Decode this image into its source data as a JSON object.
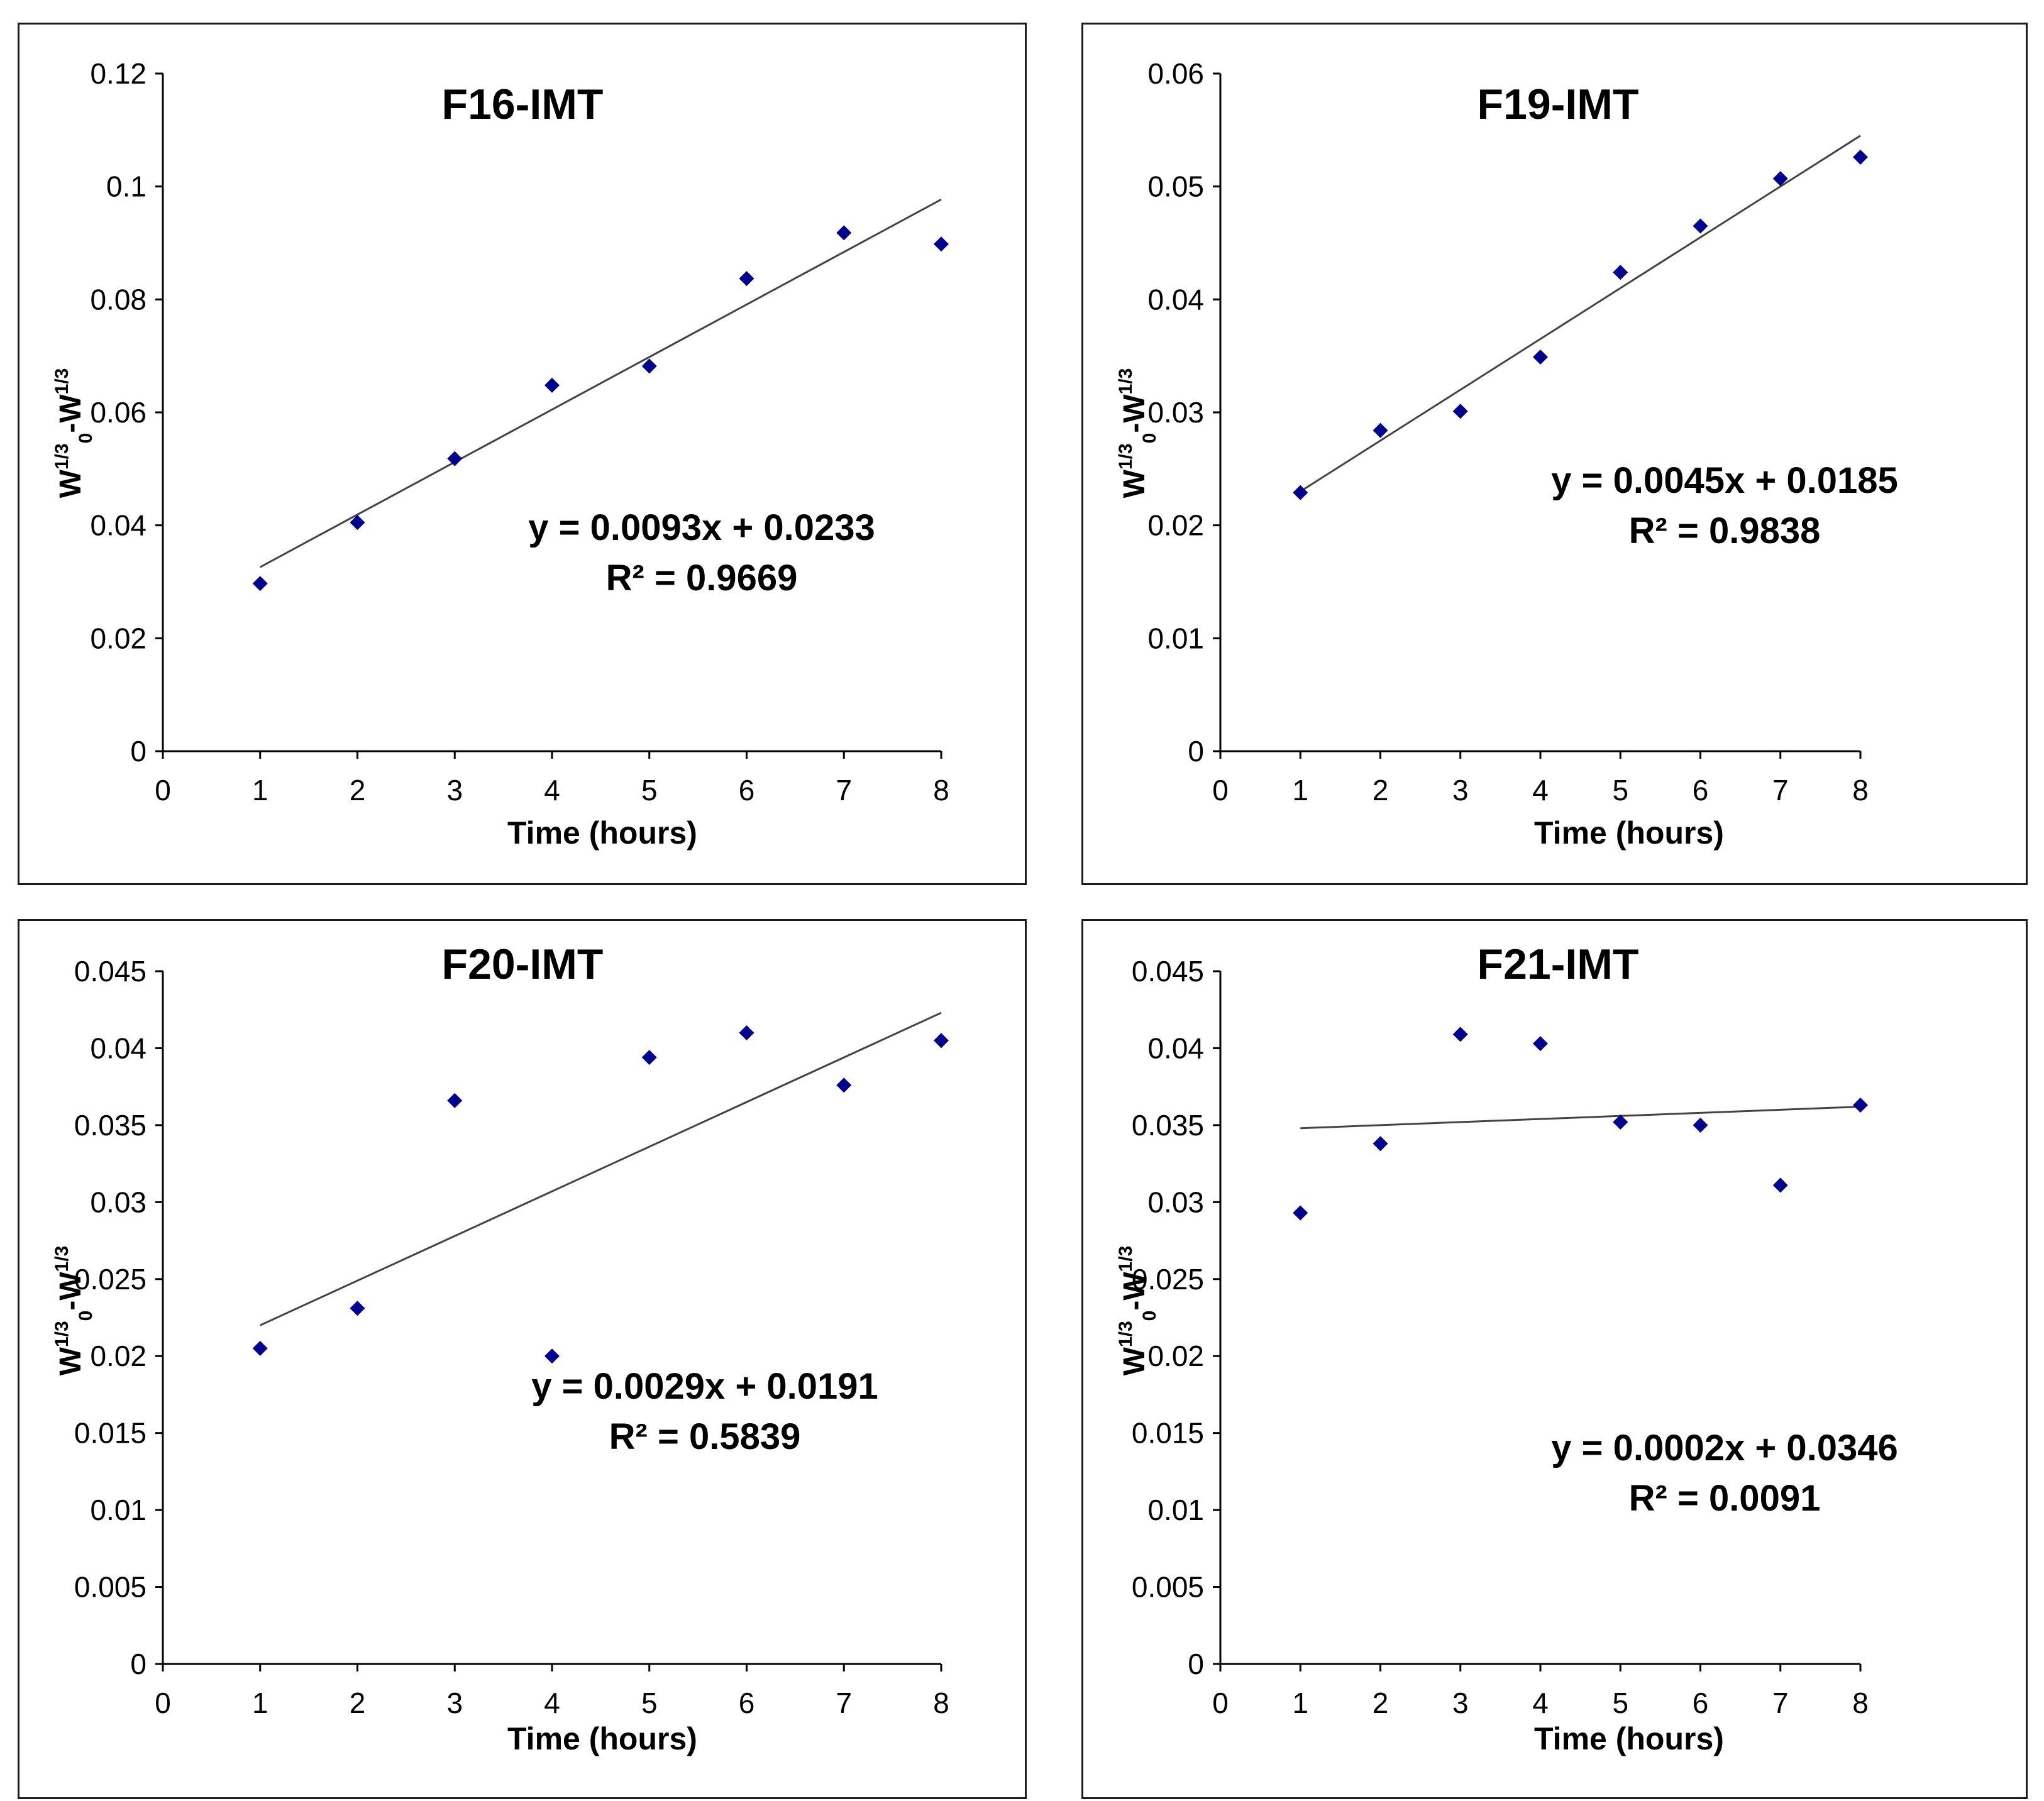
{
  "colors": {
    "marker": "#00008B",
    "trendline": "#444444",
    "axis": "#000000",
    "border": "#1a1a1a"
  },
  "chart_data": [
    {
      "type": "scatter",
      "title": "F16-IMT",
      "xlabel": "Time (hours)",
      "ylabel": {
        "base": "W",
        "sup1": "1/3",
        "sub": "0",
        "mid": "-W",
        "sup2": "1/3"
      },
      "xlim": [
        0,
        8
      ],
      "ylim": [
        0,
        0.12
      ],
      "xticks": [
        "0",
        "1",
        "2",
        "3",
        "4",
        "5",
        "6",
        "7",
        "8"
      ],
      "yticks": [
        "0",
        "0.02",
        "0.04",
        "0.06",
        "0.08",
        "0.1",
        "0.12"
      ],
      "x": [
        1,
        2,
        3,
        4,
        5,
        6,
        7,
        8
      ],
      "y": [
        0.0297,
        0.0405,
        0.0518,
        0.0648,
        0.0682,
        0.0837,
        0.0918,
        0.0898
      ],
      "trendline": {
        "slope": 0.0093,
        "intercept": 0.0233,
        "x_range": [
          1,
          8
        ]
      },
      "equation": "y = 0.0093x + 0.0233",
      "r2": "R² = 0.9669"
    },
    {
      "type": "scatter",
      "title": "F19-IMT",
      "xlabel": "Time (hours)",
      "ylabel": {
        "base": "W",
        "sup1": "1/3",
        "sub": "0",
        "mid": "-W",
        "sup2": "1/3"
      },
      "xlim": [
        0,
        8
      ],
      "ylim": [
        0,
        0.06
      ],
      "xticks": [
        "0",
        "1",
        "2",
        "3",
        "4",
        "5",
        "6",
        "7",
        "8"
      ],
      "yticks": [
        "0",
        "0.01",
        "0.02",
        "0.03",
        "0.04",
        "0.05",
        "0.06"
      ],
      "x": [
        1,
        2,
        3,
        4,
        5,
        6,
        7,
        8
      ],
      "y": [
        0.0229,
        0.0284,
        0.0301,
        0.0349,
        0.0424,
        0.0465,
        0.0507,
        0.0526
      ],
      "trendline": {
        "slope": 0.0045,
        "intercept": 0.0185,
        "x_range": [
          1,
          8
        ]
      },
      "equation": "y = 0.0045x + 0.0185",
      "r2": "R² = 0.9838"
    },
    {
      "type": "scatter",
      "title": "F20-IMT",
      "xlabel": "Time (hours)",
      "ylabel": {
        "base": "W",
        "sup1": "1/3",
        "sub": "0",
        "mid": "-W",
        "sup2": "1/3"
      },
      "xlim": [
        0,
        8
      ],
      "ylim": [
        0,
        0.045
      ],
      "xticks": [
        "0",
        "1",
        "2",
        "3",
        "4",
        "5",
        "6",
        "7",
        "8"
      ],
      "yticks": [
        "0",
        "0.005",
        "0.01",
        "0.015",
        "0.02",
        "0.025",
        "0.03",
        "0.035",
        "0.04",
        "0.045"
      ],
      "x": [
        1,
        2,
        3,
        4,
        5,
        6,
        7,
        8
      ],
      "y": [
        0.0205,
        0.0231,
        0.0366,
        0.02,
        0.0394,
        0.041,
        0.0376,
        0.0405
      ],
      "trendline": {
        "slope": 0.0029,
        "intercept": 0.0191,
        "x_range": [
          1,
          8
        ]
      },
      "equation": "y = 0.0029x + 0.0191",
      "r2": "R² = 0.5839"
    },
    {
      "type": "scatter",
      "title": "F21-IMT",
      "xlabel": "Time (hours)",
      "ylabel": {
        "base": "W",
        "sup1": "1/3",
        "sub": "0",
        "mid": "-W",
        "sup2": "1/3"
      },
      "xlim": [
        0,
        8
      ],
      "ylim": [
        0,
        0.045
      ],
      "xticks": [
        "0",
        "1",
        "2",
        "3",
        "4",
        "5",
        "6",
        "7",
        "8"
      ],
      "yticks": [
        "0",
        "0.005",
        "0.01",
        "0.015",
        "0.02",
        "0.025",
        "0.03",
        "0.035",
        "0.04",
        "0.045"
      ],
      "x": [
        1,
        2,
        3,
        4,
        5,
        6,
        7,
        8
      ],
      "y": [
        0.0293,
        0.0338,
        0.0409,
        0.0403,
        0.0352,
        0.035,
        0.0311,
        0.0363
      ],
      "trendline": {
        "slope": 0.0002,
        "intercept": 0.0346,
        "x_range": [
          1,
          8
        ]
      },
      "equation": "y = 0.0002x + 0.0346",
      "r2": "R² = 0.0091"
    }
  ]
}
